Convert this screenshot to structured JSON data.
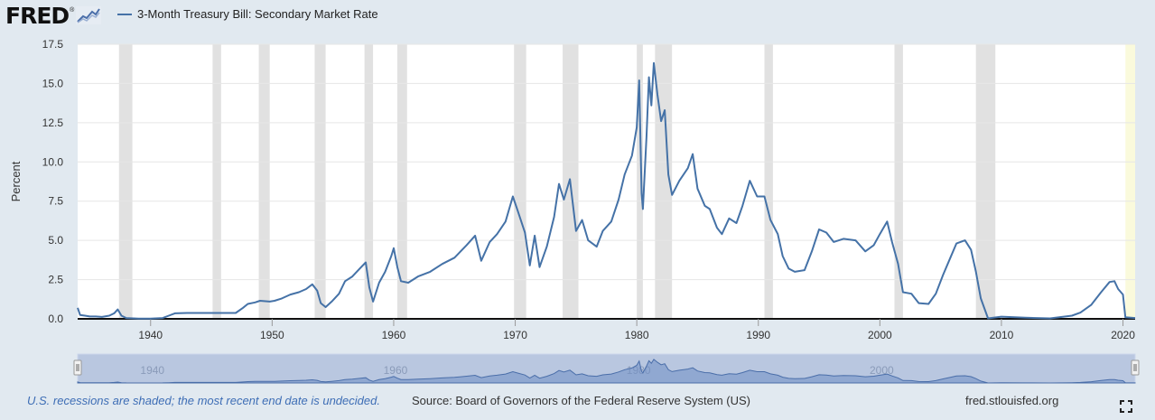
{
  "brand": {
    "name": "FRED",
    "reg_mark": "®",
    "icon": "trend-line-icon"
  },
  "legend": {
    "series_name": "3-Month Treasury Bill: Secondary Market Rate",
    "color": "#4572a7"
  },
  "footer": {
    "recession_note": "U.S. recessions are shaded; the most recent end date is undecided.",
    "source": "Source: Board of Governors of the Federal Reserve System (US)",
    "site": "fred.stlouisfed.org",
    "fullscreen_icon": "expand-icon"
  },
  "colors": {
    "background": "#e1e9f0",
    "plot_bg": "#ffffff",
    "line": "#4572a7",
    "recession": "#e1e1e1",
    "recession_undecided": "#fafadc",
    "navigator_fill": "#b9c7e0",
    "navigator_area": "#6f8ec5"
  },
  "chart_data": {
    "type": "line",
    "title": "3-Month Treasury Bill: Secondary Market Rate",
    "xlabel": "",
    "ylabel": "Percent",
    "x_ticks": [
      1940,
      1950,
      1960,
      1970,
      1980,
      1990,
      2000,
      2010,
      2020
    ],
    "y_ticks": [
      "0.0",
      "2.5",
      "5.0",
      "7.5",
      "10.0",
      "12.5",
      "15.0",
      "17.5"
    ],
    "xlim": [
      1934.0,
      2021.0
    ],
    "ylim": [
      0,
      17.5
    ],
    "grid": "horizontal",
    "navigator_ticks": [
      1940,
      1960,
      1980,
      2000
    ],
    "recessions": [
      [
        1937.4,
        1938.5
      ],
      [
        1945.1,
        1945.8
      ],
      [
        1948.9,
        1949.8
      ],
      [
        1953.5,
        1954.4
      ],
      [
        1957.6,
        1958.3
      ],
      [
        1960.3,
        1961.1
      ],
      [
        1969.9,
        1970.9
      ],
      [
        1973.9,
        1975.2
      ],
      [
        1980.0,
        1980.5
      ],
      [
        1981.5,
        1982.9
      ],
      [
        1990.5,
        1991.2
      ],
      [
        2001.2,
        2001.9
      ],
      [
        2007.9,
        2009.5
      ]
    ],
    "recession_undecided": [
      2020.2,
      2021.0
    ],
    "series": [
      {
        "name": "3-Month Treasury Bill: Secondary Market Rate",
        "points": [
          [
            1934.0,
            0.7
          ],
          [
            1934.2,
            0.25
          ],
          [
            1934.6,
            0.2
          ],
          [
            1935.0,
            0.15
          ],
          [
            1935.5,
            0.15
          ],
          [
            1936.0,
            0.12
          ],
          [
            1936.6,
            0.2
          ],
          [
            1937.0,
            0.35
          ],
          [
            1937.3,
            0.6
          ],
          [
            1937.6,
            0.2
          ],
          [
            1938.0,
            0.05
          ],
          [
            1939.0,
            0.02
          ],
          [
            1940.0,
            0.02
          ],
          [
            1941.0,
            0.05
          ],
          [
            1941.5,
            0.2
          ],
          [
            1942.0,
            0.35
          ],
          [
            1943.0,
            0.375
          ],
          [
            1947.0,
            0.375
          ],
          [
            1947.6,
            0.7
          ],
          [
            1948.0,
            0.95
          ],
          [
            1948.6,
            1.05
          ],
          [
            1949.0,
            1.15
          ],
          [
            1949.8,
            1.1
          ],
          [
            1950.2,
            1.15
          ],
          [
            1950.8,
            1.3
          ],
          [
            1951.5,
            1.55
          ],
          [
            1952.2,
            1.7
          ],
          [
            1952.8,
            1.9
          ],
          [
            1953.3,
            2.2
          ],
          [
            1953.7,
            1.8
          ],
          [
            1954.0,
            1.0
          ],
          [
            1954.4,
            0.75
          ],
          [
            1954.9,
            1.1
          ],
          [
            1955.5,
            1.6
          ],
          [
            1956.0,
            2.4
          ],
          [
            1956.6,
            2.7
          ],
          [
            1957.2,
            3.2
          ],
          [
            1957.7,
            3.6
          ],
          [
            1958.0,
            2.0
          ],
          [
            1958.3,
            1.1
          ],
          [
            1958.8,
            2.3
          ],
          [
            1959.3,
            3.0
          ],
          [
            1959.8,
            4.0
          ],
          [
            1960.0,
            4.5
          ],
          [
            1960.3,
            3.3
          ],
          [
            1960.6,
            2.4
          ],
          [
            1961.2,
            2.3
          ],
          [
            1962.0,
            2.7
          ],
          [
            1963.0,
            3.0
          ],
          [
            1964.0,
            3.5
          ],
          [
            1965.0,
            3.9
          ],
          [
            1966.0,
            4.7
          ],
          [
            1966.7,
            5.3
          ],
          [
            1967.2,
            3.7
          ],
          [
            1967.9,
            4.9
          ],
          [
            1968.5,
            5.4
          ],
          [
            1969.2,
            6.2
          ],
          [
            1969.8,
            7.8
          ],
          [
            1970.2,
            6.9
          ],
          [
            1970.8,
            5.5
          ],
          [
            1971.2,
            3.4
          ],
          [
            1971.6,
            5.3
          ],
          [
            1972.0,
            3.3
          ],
          [
            1972.6,
            4.6
          ],
          [
            1973.2,
            6.5
          ],
          [
            1973.6,
            8.6
          ],
          [
            1974.0,
            7.6
          ],
          [
            1974.5,
            8.9
          ],
          [
            1975.0,
            5.6
          ],
          [
            1975.5,
            6.3
          ],
          [
            1976.0,
            5.0
          ],
          [
            1976.7,
            4.6
          ],
          [
            1977.2,
            5.6
          ],
          [
            1977.9,
            6.2
          ],
          [
            1978.5,
            7.6
          ],
          [
            1979.0,
            9.2
          ],
          [
            1979.6,
            10.4
          ],
          [
            1980.0,
            12.2
          ],
          [
            1980.2,
            15.2
          ],
          [
            1980.4,
            8.0
          ],
          [
            1980.5,
            7.0
          ],
          [
            1980.8,
            11.6
          ],
          [
            1981.0,
            15.4
          ],
          [
            1981.2,
            13.6
          ],
          [
            1981.4,
            16.3
          ],
          [
            1981.7,
            14.3
          ],
          [
            1982.0,
            12.6
          ],
          [
            1982.3,
            13.3
          ],
          [
            1982.6,
            9.2
          ],
          [
            1982.9,
            7.9
          ],
          [
            1983.5,
            8.8
          ],
          [
            1984.2,
            9.6
          ],
          [
            1984.6,
            10.5
          ],
          [
            1985.0,
            8.3
          ],
          [
            1985.6,
            7.2
          ],
          [
            1986.0,
            7.0
          ],
          [
            1986.6,
            5.8
          ],
          [
            1987.0,
            5.4
          ],
          [
            1987.6,
            6.4
          ],
          [
            1988.2,
            6.1
          ],
          [
            1988.7,
            7.2
          ],
          [
            1989.3,
            8.8
          ],
          [
            1989.9,
            7.8
          ],
          [
            1990.5,
            7.8
          ],
          [
            1991.0,
            6.3
          ],
          [
            1991.6,
            5.4
          ],
          [
            1992.0,
            4.0
          ],
          [
            1992.5,
            3.2
          ],
          [
            1993.0,
            3.0
          ],
          [
            1993.8,
            3.1
          ],
          [
            1994.4,
            4.3
          ],
          [
            1995.0,
            5.7
          ],
          [
            1995.6,
            5.5
          ],
          [
            1996.2,
            4.9
          ],
          [
            1997.0,
            5.1
          ],
          [
            1998.0,
            5.0
          ],
          [
            1998.8,
            4.3
          ],
          [
            1999.5,
            4.7
          ],
          [
            2000.0,
            5.4
          ],
          [
            2000.6,
            6.2
          ],
          [
            2001.0,
            4.9
          ],
          [
            2001.5,
            3.5
          ],
          [
            2001.9,
            1.7
          ],
          [
            2002.6,
            1.6
          ],
          [
            2003.2,
            1.0
          ],
          [
            2004.0,
            0.95
          ],
          [
            2004.6,
            1.6
          ],
          [
            2005.2,
            2.8
          ],
          [
            2005.8,
            3.9
          ],
          [
            2006.3,
            4.8
          ],
          [
            2007.0,
            5.0
          ],
          [
            2007.5,
            4.4
          ],
          [
            2007.9,
            3.0
          ],
          [
            2008.3,
            1.3
          ],
          [
            2008.9,
            0.03
          ],
          [
            2010.0,
            0.14
          ],
          [
            2012.0,
            0.07
          ],
          [
            2014.0,
            0.03
          ],
          [
            2015.8,
            0.2
          ],
          [
            2016.5,
            0.4
          ],
          [
            2017.4,
            0.9
          ],
          [
            2018.2,
            1.7
          ],
          [
            2018.9,
            2.35
          ],
          [
            2019.3,
            2.4
          ],
          [
            2019.6,
            1.9
          ],
          [
            2020.0,
            1.55
          ],
          [
            2020.2,
            0.1
          ],
          [
            2021.0,
            0.05
          ]
        ]
      }
    ]
  }
}
